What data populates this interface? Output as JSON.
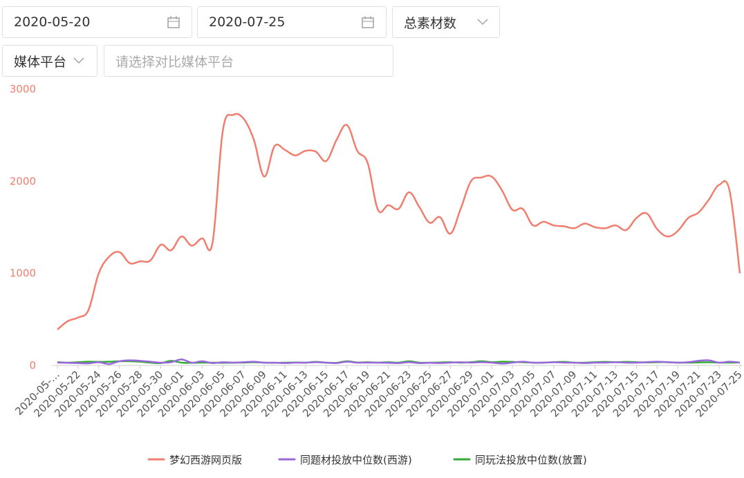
{
  "controls": {
    "start_date": "2020-05-20",
    "end_date": "2020-07-25",
    "metric": "总素材数",
    "media": "媒体平台",
    "compare_placeholder": "请选择对比媒体平台"
  },
  "chart_data": {
    "type": "line",
    "smooth": true,
    "grid": false,
    "categories": [
      "2020-05-…",
      null,
      "2020-05-22",
      null,
      "2020-05-24",
      null,
      "2020-05-26",
      null,
      "2020-05-28",
      null,
      "2020-05-30",
      null,
      "2020-06-01",
      null,
      "2020-06-03",
      null,
      "2020-06-05",
      null,
      "2020-06-07",
      null,
      "2020-06-09",
      null,
      "2020-06-11",
      null,
      "2020-06-13",
      null,
      "2020-06-15",
      null,
      "2020-06-17",
      null,
      "2020-06-19",
      null,
      "2020-06-21",
      null,
      "2020-06-23",
      null,
      "2020-06-25",
      null,
      "2020-06-27",
      null,
      "2020-06-29",
      null,
      "2020-07-01",
      null,
      "2020-07-03",
      null,
      "2020-07-05",
      null,
      "2020-07-07",
      null,
      "2020-07-09",
      null,
      "2020-07-11",
      null,
      "2020-07-13",
      null,
      "2020-07-15",
      null,
      "2020-07-17",
      null,
      "2020-07-19",
      null,
      "2020-07-21",
      null,
      "2020-07-23",
      null,
      "2020-07-25"
    ],
    "ylim": [
      0,
      3000
    ],
    "yticks": [
      0,
      1000,
      2000,
      3000
    ],
    "ytick_color": "#f07e6e",
    "series": [
      {
        "name": "梦幻西游网页版",
        "color": "#f07e6e",
        "values": [
          390,
          480,
          520,
          600,
          1000,
          1180,
          1230,
          1110,
          1130,
          1140,
          1310,
          1250,
          1400,
          1300,
          1380,
          1330,
          2550,
          2720,
          2680,
          2450,
          2050,
          2380,
          2340,
          2280,
          2330,
          2320,
          2220,
          2450,
          2610,
          2330,
          2200,
          1690,
          1740,
          1700,
          1880,
          1720,
          1550,
          1610,
          1430,
          1700,
          2000,
          2040,
          2050,
          1900,
          1690,
          1700,
          1520,
          1560,
          1520,
          1510,
          1490,
          1540,
          1500,
          1490,
          1520,
          1470,
          1600,
          1650,
          1480,
          1400,
          1460,
          1600,
          1660,
          1800,
          1960,
          1900,
          1000
        ]
      },
      {
        "name": "同题材投放中位数(西游)",
        "color": "#9966dd",
        "values": [
          30,
          28,
          25,
          22,
          35,
          15,
          45,
          55,
          50,
          40,
          30,
          35,
          65,
          30,
          45,
          25,
          35,
          30,
          35,
          40,
          30,
          30,
          25,
          30,
          30,
          35,
          30,
          25,
          40,
          30,
          30,
          30,
          28,
          25,
          35,
          25,
          28,
          25,
          30,
          35,
          30,
          35,
          30,
          20,
          30,
          40,
          30,
          30,
          35,
          30,
          30,
          25,
          30,
          30,
          35,
          30,
          30,
          35,
          40,
          35,
          30,
          35,
          50,
          55,
          30,
          40,
          30
        ]
      },
      {
        "name": "同玩法投放中位数(放置)",
        "color": "#33aa33",
        "values": [
          35,
          30,
          35,
          40,
          38,
          40,
          45,
          45,
          40,
          30,
          25,
          50,
          30,
          28,
          30,
          30,
          28,
          30,
          30,
          35,
          30,
          28,
          30,
          32,
          30,
          38,
          30,
          28,
          45,
          32,
          35,
          30,
          35,
          30,
          45,
          30,
          30,
          32,
          35,
          30,
          35,
          45,
          35,
          40,
          38,
          35,
          30,
          30,
          35,
          38,
          30,
          30,
          35,
          38,
          35,
          38,
          35,
          32,
          35,
          35,
          30,
          30,
          32,
          35,
          30,
          30,
          32
        ]
      }
    ]
  }
}
